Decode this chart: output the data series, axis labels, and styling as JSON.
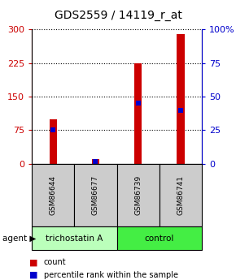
{
  "title": "GDS2559 / 14119_r_at",
  "samples": [
    "GSM86644",
    "GSM86677",
    "GSM86739",
    "GSM86741"
  ],
  "counts": [
    100,
    10,
    225,
    290
  ],
  "percentiles": [
    25,
    2,
    45,
    40
  ],
  "ylim_left": [
    0,
    300
  ],
  "ylim_right": [
    0,
    100
  ],
  "yticks_left": [
    0,
    75,
    150,
    225,
    300
  ],
  "yticks_right": [
    0,
    25,
    50,
    75,
    100
  ],
  "bar_color": "#cc0000",
  "percentile_color": "#0000cc",
  "groups": [
    {
      "label": "trichostatin A",
      "samples": [
        0,
        1
      ],
      "color": "#bbffbb"
    },
    {
      "label": "control",
      "samples": [
        2,
        3
      ],
      "color": "#44ee44"
    }
  ],
  "agent_label": "agent",
  "legend_count": "count",
  "legend_percentile": "percentile rank within the sample",
  "title_fontsize": 10,
  "tick_fontsize": 8,
  "sample_box_color": "#cccccc",
  "plot_bg": "#ffffff",
  "bar_width": 0.18
}
